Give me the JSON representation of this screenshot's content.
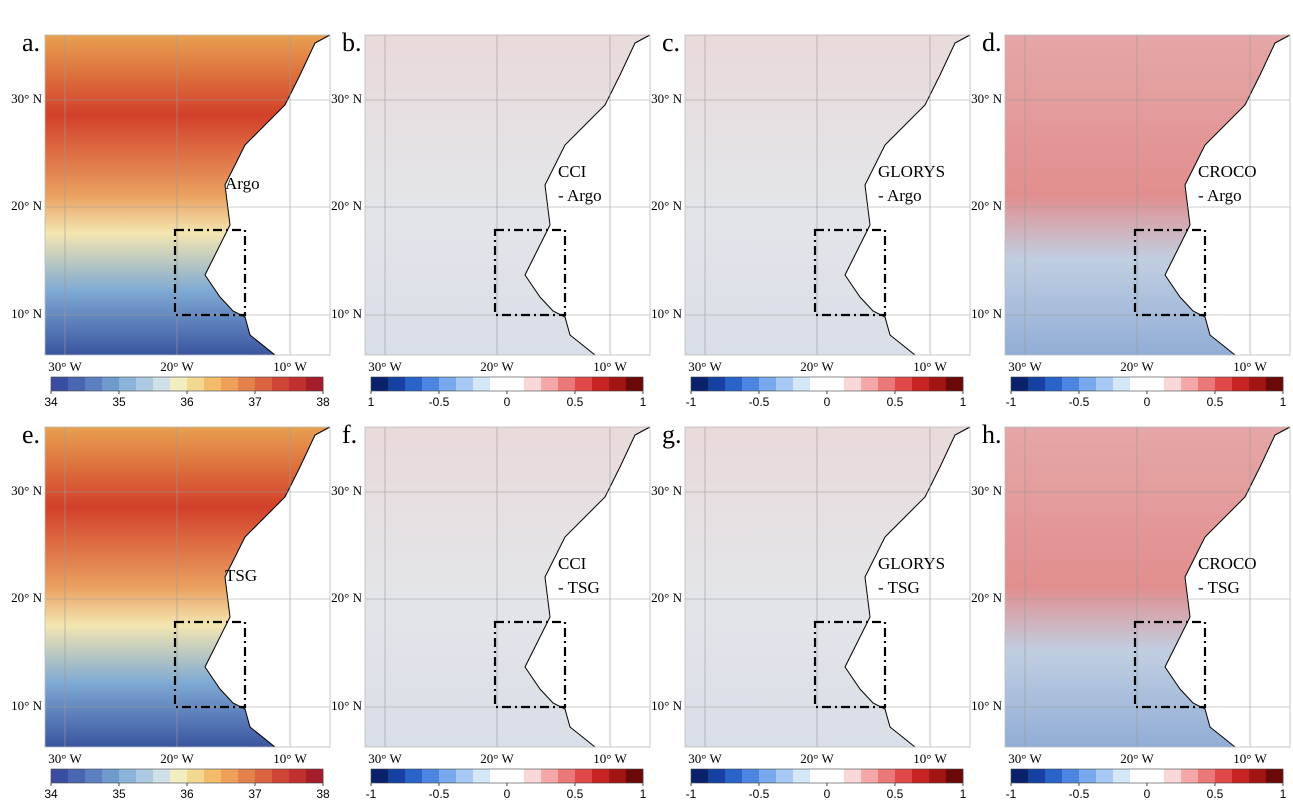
{
  "panels": [
    {
      "letter": "a.",
      "label": [
        "Argo"
      ],
      "colorbar": [
        "34",
        "35",
        "36",
        "37",
        "38"
      ]
    },
    {
      "letter": "b.",
      "label": [
        "CCI",
        "- Argo"
      ],
      "colorbar": [
        "1",
        "-0.5",
        "0",
        "0.5",
        "1"
      ]
    },
    {
      "letter": "c.",
      "label": [
        "GLORYS",
        "- Argo"
      ],
      "colorbar": [
        "-1",
        "-0.5",
        "0",
        "0.5",
        "1"
      ]
    },
    {
      "letter": "d.",
      "label": [
        "CROCO",
        "- Argo"
      ],
      "colorbar": [
        "-1",
        "-0.5",
        "0",
        "0.5",
        "1"
      ]
    },
    {
      "letter": "e.",
      "label": [
        "TSG"
      ],
      "colorbar": [
        "34",
        "35",
        "36",
        "37",
        "38"
      ]
    },
    {
      "letter": "f.",
      "label": [
        "CCI",
        "- TSG"
      ],
      "colorbar": [
        "-1",
        "-0.5",
        "0",
        "0.5",
        "1"
      ]
    },
    {
      "letter": "g.",
      "label": [
        "GLORYS",
        "- TSG"
      ],
      "colorbar": [
        "-1",
        "-0.5",
        "0",
        "0.5",
        "1"
      ]
    },
    {
      "letter": "h.",
      "label": [
        "CROCO",
        "- TSG"
      ],
      "colorbar": [
        "-1",
        "-0.5",
        "0",
        "0.5",
        "1"
      ]
    }
  ],
  "lat_labels": [
    "30° N",
    "20° N",
    "10° N"
  ],
  "lon_labels": [
    "30° W",
    "20° W",
    "10° W"
  ]
}
